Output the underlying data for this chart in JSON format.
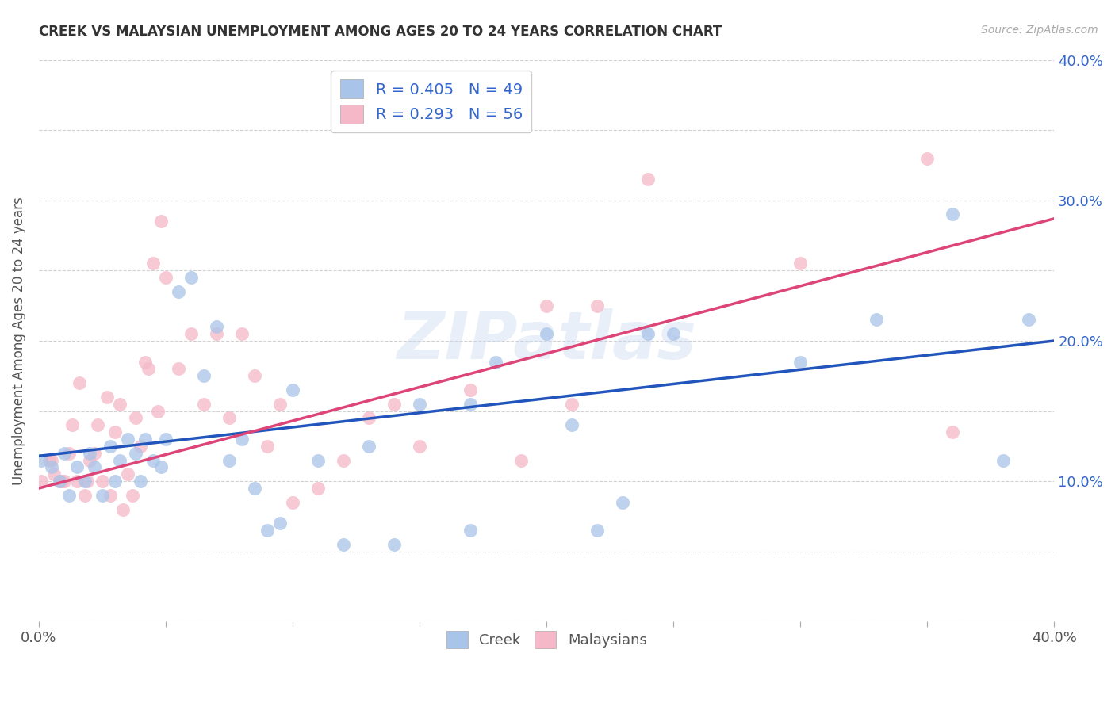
{
  "title": "CREEK VS MALAYSIAN UNEMPLOYMENT AMONG AGES 20 TO 24 YEARS CORRELATION CHART",
  "source": "Source: ZipAtlas.com",
  "ylabel": "Unemployment Among Ages 20 to 24 years",
  "xlim": [
    0.0,
    0.4
  ],
  "ylim": [
    0.0,
    0.4
  ],
  "xticks": [
    0.0,
    0.05,
    0.1,
    0.15,
    0.2,
    0.25,
    0.3,
    0.35,
    0.4
  ],
  "yticks": [
    0.0,
    0.05,
    0.1,
    0.15,
    0.2,
    0.25,
    0.3,
    0.35,
    0.4
  ],
  "background_color": "#ffffff",
  "watermark_text": "ZIPatlas",
  "creek_R": 0.405,
  "creek_N": 49,
  "malay_R": 0.293,
  "malay_N": 56,
  "creek_color": "#a8c4e8",
  "malay_color": "#f5b8c8",
  "creek_line_color": "#2255bb",
  "malay_line_color": "#dd4477",
  "gray_dash_color": "#cccccc",
  "right_label_color": "#3366cc",
  "creek_line_intercept": 0.118,
  "creek_line_slope": 0.205,
  "malay_line_intercept": 0.095,
  "malay_line_slope": 0.48,
  "creek_scatter_x": [
    0.001,
    0.005,
    0.008,
    0.01,
    0.012,
    0.015,
    0.018,
    0.02,
    0.022,
    0.025,
    0.028,
    0.03,
    0.032,
    0.035,
    0.038,
    0.04,
    0.042,
    0.045,
    0.048,
    0.05,
    0.055,
    0.06,
    0.065,
    0.07,
    0.075,
    0.08,
    0.085,
    0.09,
    0.095,
    0.1,
    0.11,
    0.12,
    0.13,
    0.14,
    0.15,
    0.17,
    0.17,
    0.18,
    0.2,
    0.21,
    0.22,
    0.23,
    0.24,
    0.25,
    0.3,
    0.33,
    0.36,
    0.38,
    0.39
  ],
  "creek_scatter_y": [
    0.115,
    0.11,
    0.1,
    0.12,
    0.09,
    0.11,
    0.1,
    0.12,
    0.11,
    0.09,
    0.125,
    0.1,
    0.115,
    0.13,
    0.12,
    0.1,
    0.13,
    0.115,
    0.11,
    0.13,
    0.235,
    0.245,
    0.175,
    0.21,
    0.115,
    0.13,
    0.095,
    0.065,
    0.07,
    0.165,
    0.115,
    0.055,
    0.125,
    0.055,
    0.155,
    0.155,
    0.065,
    0.185,
    0.205,
    0.14,
    0.065,
    0.085,
    0.205,
    0.205,
    0.185,
    0.215,
    0.29,
    0.115,
    0.215
  ],
  "malay_scatter_x": [
    0.001,
    0.005,
    0.008,
    0.01,
    0.012,
    0.015,
    0.018,
    0.02,
    0.022,
    0.025,
    0.028,
    0.03,
    0.032,
    0.035,
    0.038,
    0.04,
    0.042,
    0.045,
    0.048,
    0.05,
    0.055,
    0.06,
    0.065,
    0.07,
    0.075,
    0.08,
    0.085,
    0.09,
    0.095,
    0.1,
    0.11,
    0.12,
    0.13,
    0.14,
    0.15,
    0.17,
    0.19,
    0.2,
    0.21,
    0.22,
    0.24,
    0.3,
    0.35,
    0.36,
    0.004,
    0.006,
    0.009,
    0.013,
    0.016,
    0.019,
    0.023,
    0.027,
    0.033,
    0.037,
    0.043,
    0.047
  ],
  "malay_scatter_y": [
    0.1,
    0.115,
    0.1,
    0.1,
    0.12,
    0.1,
    0.09,
    0.115,
    0.12,
    0.1,
    0.09,
    0.135,
    0.155,
    0.105,
    0.145,
    0.125,
    0.185,
    0.255,
    0.285,
    0.245,
    0.18,
    0.205,
    0.155,
    0.205,
    0.145,
    0.205,
    0.175,
    0.125,
    0.155,
    0.085,
    0.095,
    0.115,
    0.145,
    0.155,
    0.125,
    0.165,
    0.115,
    0.225,
    0.155,
    0.225,
    0.315,
    0.255,
    0.33,
    0.135,
    0.115,
    0.105,
    0.1,
    0.14,
    0.17,
    0.1,
    0.14,
    0.16,
    0.08,
    0.09,
    0.18,
    0.15
  ]
}
